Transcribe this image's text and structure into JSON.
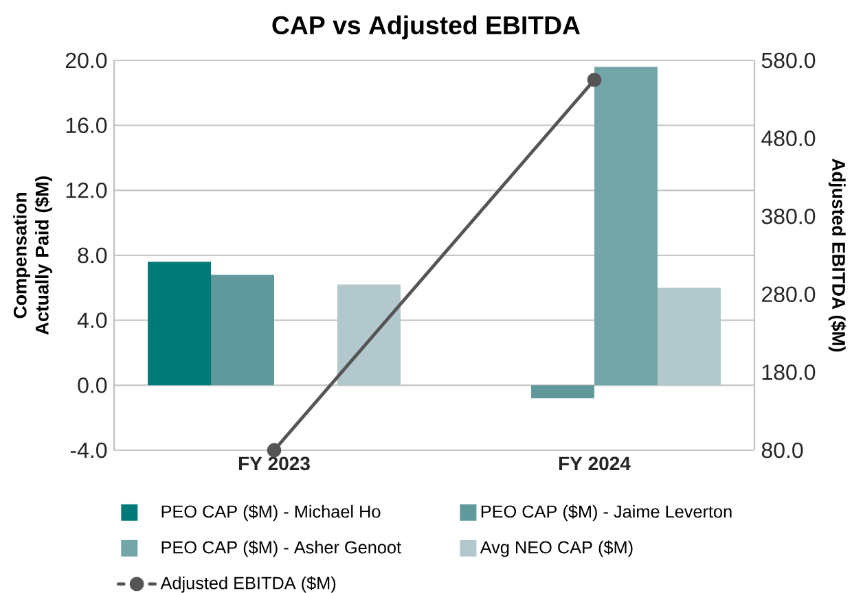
{
  "chart_data": {
    "type": "bar",
    "title": "CAP vs Adjusted EBITDA",
    "ylabel": "Compensation Actually Paid ($M)",
    "y2label": "Adjusted EBITDA ($M)",
    "categories": [
      "FY 2023",
      "FY 2024"
    ],
    "series": [
      {
        "name": "PEO CAP ($M) - Michael Ho",
        "color": "#007a78",
        "values": [
          7.6,
          null
        ]
      },
      {
        "name": "PEO CAP ($M) - Jaime Leverton",
        "color": "#5f999c",
        "values": [
          6.8,
          -0.8
        ]
      },
      {
        "name": "PEO CAP ($M) - Asher Genoot",
        "color": "#72a6a9",
        "values": [
          null,
          19.6
        ]
      },
      {
        "name": "Avg NEO CAP ($M)",
        "color": "#b2c8cc",
        "values": [
          6.2,
          6.0
        ]
      },
      {
        "name": "Adjusted EBITDA ($M)",
        "type": "line",
        "axis": "y2",
        "color": "#555555",
        "marker": "circle",
        "values": [
          80,
          555
        ]
      }
    ],
    "ylim": [
      -4,
      20
    ],
    "yticks": [
      {
        "value": -4,
        "label": "-4.0"
      },
      {
        "value": 0,
        "label": "0.0"
      },
      {
        "value": 4,
        "label": "4.0"
      },
      {
        "value": 8,
        "label": "8.0"
      },
      {
        "value": 12,
        "label": "12.0"
      },
      {
        "value": 16,
        "label": "16.0"
      },
      {
        "value": 20,
        "label": "20.0"
      }
    ],
    "y2lim": [
      80,
      580
    ],
    "y2ticks": [
      {
        "value": 80,
        "label": "80.0"
      },
      {
        "value": 180,
        "label": "180.0"
      },
      {
        "value": 280,
        "label": "280.0"
      },
      {
        "value": 380,
        "label": "380.0"
      },
      {
        "value": 480,
        "label": "480.0"
      },
      {
        "value": 580,
        "label": "580.0"
      }
    ],
    "grid": "y",
    "legend": "bottom"
  }
}
